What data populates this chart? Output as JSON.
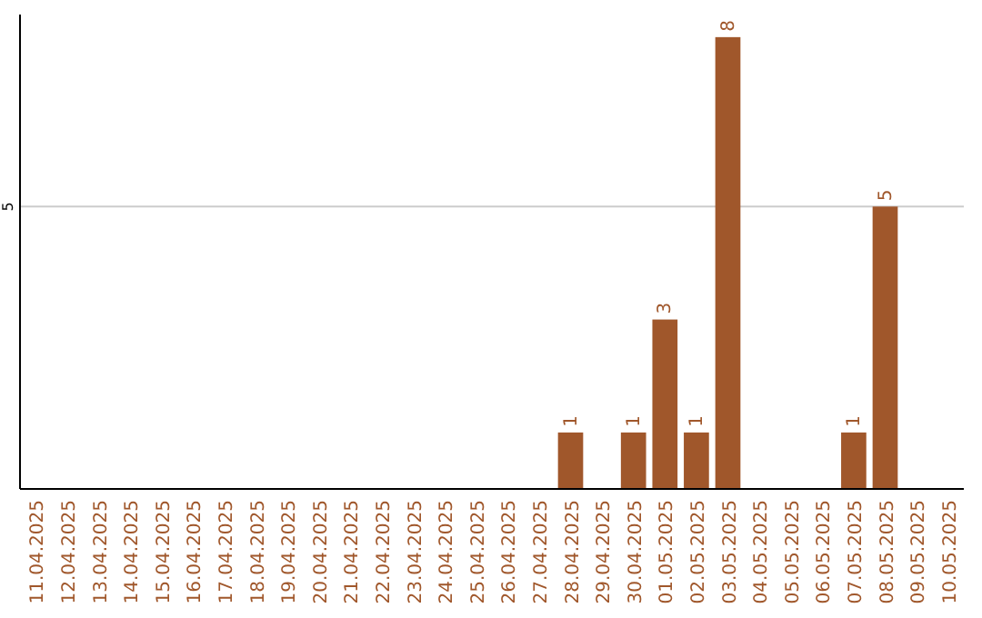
{
  "chart_data": {
    "type": "bar",
    "categories": [
      "11.04.2025",
      "12.04.2025",
      "13.04.2025",
      "14.04.2025",
      "15.04.2025",
      "16.04.2025",
      "17.04.2025",
      "18.04.2025",
      "19.04.2025",
      "20.04.2025",
      "21.04.2025",
      "22.04.2025",
      "23.04.2025",
      "24.04.2025",
      "25.04.2025",
      "26.04.2025",
      "27.04.2025",
      "28.04.2025",
      "29.04.2025",
      "30.04.2025",
      "01.05.2025",
      "02.05.2025",
      "03.05.2025",
      "04.05.2025",
      "05.05.2025",
      "06.05.2025",
      "07.05.2025",
      "08.05.2025",
      "09.05.2025",
      "10.05.2025"
    ],
    "values": [
      null,
      null,
      null,
      null,
      null,
      null,
      null,
      null,
      null,
      null,
      null,
      null,
      null,
      null,
      null,
      null,
      null,
      1,
      null,
      1,
      3,
      1,
      8,
      null,
      null,
      null,
      1,
      5,
      null,
      null
    ],
    "color": "#a0572b",
    "ylim": [
      0,
      8.4
    ],
    "yticks": [
      5
    ],
    "grid": "y",
    "data_labels": true
  }
}
